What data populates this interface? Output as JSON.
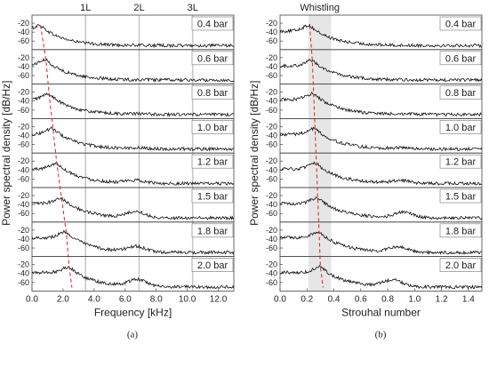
{
  "chart_data": [
    {
      "type": "line",
      "panel_label": "(a)",
      "xlabel": "Frequency [kHz]",
      "ylabel": "Power spectral density [dB/Hz]",
      "xlim": [
        0,
        13
      ],
      "x_ticks": [
        "0.0",
        "2.0",
        "4.0",
        "6.0",
        "8.0",
        "10.0",
        "12.0"
      ],
      "ylim": [
        -75,
        -10
      ],
      "y_ticks": [
        "-20",
        "-40",
        "-60"
      ],
      "top_labels": [
        "1L",
        "2L",
        "3L"
      ],
      "reference_lines_x": [
        3.45,
        6.9,
        10.35
      ],
      "peak_track_color": "#e02020",
      "series": [
        {
          "name": "0.4 bar",
          "fundamental_x": 0.55,
          "peak_db": -25,
          "bump_x": 6.9,
          "bump_db": -70,
          "floor_db": -70
        },
        {
          "name": "0.6 bar",
          "fundamental_x": 0.9,
          "peak_db": -25,
          "bump_x": 6.9,
          "bump_db": -70,
          "floor_db": -70
        },
        {
          "name": "0.8 bar",
          "fundamental_x": 1.1,
          "peak_db": -24,
          "bump_x": 6.9,
          "bump_db": -69,
          "floor_db": -70
        },
        {
          "name": "1.0 bar",
          "fundamental_x": 1.35,
          "peak_db": -24,
          "bump_x": 6.9,
          "bump_db": -68,
          "floor_db": -70
        },
        {
          "name": "1.2 bar",
          "fundamental_x": 1.6,
          "peak_db": -25,
          "bump_x": 6.7,
          "bump_db": -64,
          "floor_db": -70
        },
        {
          "name": "1.5 bar",
          "fundamental_x": 1.9,
          "peak_db": -25,
          "bump_x": 6.7,
          "bump_db": -57,
          "floor_db": -70
        },
        {
          "name": "1.8 bar",
          "fundamental_x": 2.2,
          "peak_db": -24,
          "bump_x": 6.7,
          "bump_db": -58,
          "floor_db": -70
        },
        {
          "name": "2.0 bar",
          "fundamental_x": 2.4,
          "peak_db": -25,
          "bump_x": 6.8,
          "bump_db": -55,
          "floor_db": -70
        }
      ]
    },
    {
      "type": "line",
      "panel_label": "(b)",
      "xlabel": "Strouhal number",
      "ylabel": "Power spectral density [dB/Hz]",
      "xlim": [
        0,
        1.5
      ],
      "x_ticks": [
        "0.0",
        "0.2",
        "0.4",
        "0.6",
        "0.8",
        "1.0",
        "1.2",
        "1.4"
      ],
      "ylim": [
        -75,
        -10
      ],
      "y_ticks": [
        "-20",
        "-40",
        "-60"
      ],
      "annotation": "Whistling",
      "shaded_band_x": [
        0.21,
        0.38
      ],
      "peak_track_color": "#e02020",
      "series": [
        {
          "name": "0.4 bar",
          "fundamental_x": 0.22,
          "peak_db": -25,
          "bump_x": 0.9,
          "bump_db": -70,
          "floor_db": -70
        },
        {
          "name": "0.6 bar",
          "fundamental_x": 0.24,
          "peak_db": -26,
          "bump_x": 0.9,
          "bump_db": -70,
          "floor_db": -70
        },
        {
          "name": "0.8 bar",
          "fundamental_x": 0.25,
          "peak_db": -23,
          "bump_x": 0.9,
          "bump_db": -69,
          "floor_db": -70
        },
        {
          "name": "1.0 bar",
          "fundamental_x": 0.26,
          "peak_db": -24,
          "bump_x": 0.9,
          "bump_db": -68,
          "floor_db": -70
        },
        {
          "name": "1.2 bar",
          "fundamental_x": 0.27,
          "peak_db": -25,
          "bump_x": 0.9,
          "bump_db": -64,
          "floor_db": -70
        },
        {
          "name": "1.5 bar",
          "fundamental_x": 0.28,
          "peak_db": -25,
          "bump_x": 0.92,
          "bump_db": -57,
          "floor_db": -70
        },
        {
          "name": "1.8 bar",
          "fundamental_x": 0.29,
          "peak_db": -24,
          "bump_x": 0.88,
          "bump_db": -58,
          "floor_db": -70
        },
        {
          "name": "2.0 bar",
          "fundamental_x": 0.3,
          "peak_db": -25,
          "bump_x": 0.84,
          "bump_db": -55,
          "floor_db": -70
        }
      ]
    }
  ]
}
